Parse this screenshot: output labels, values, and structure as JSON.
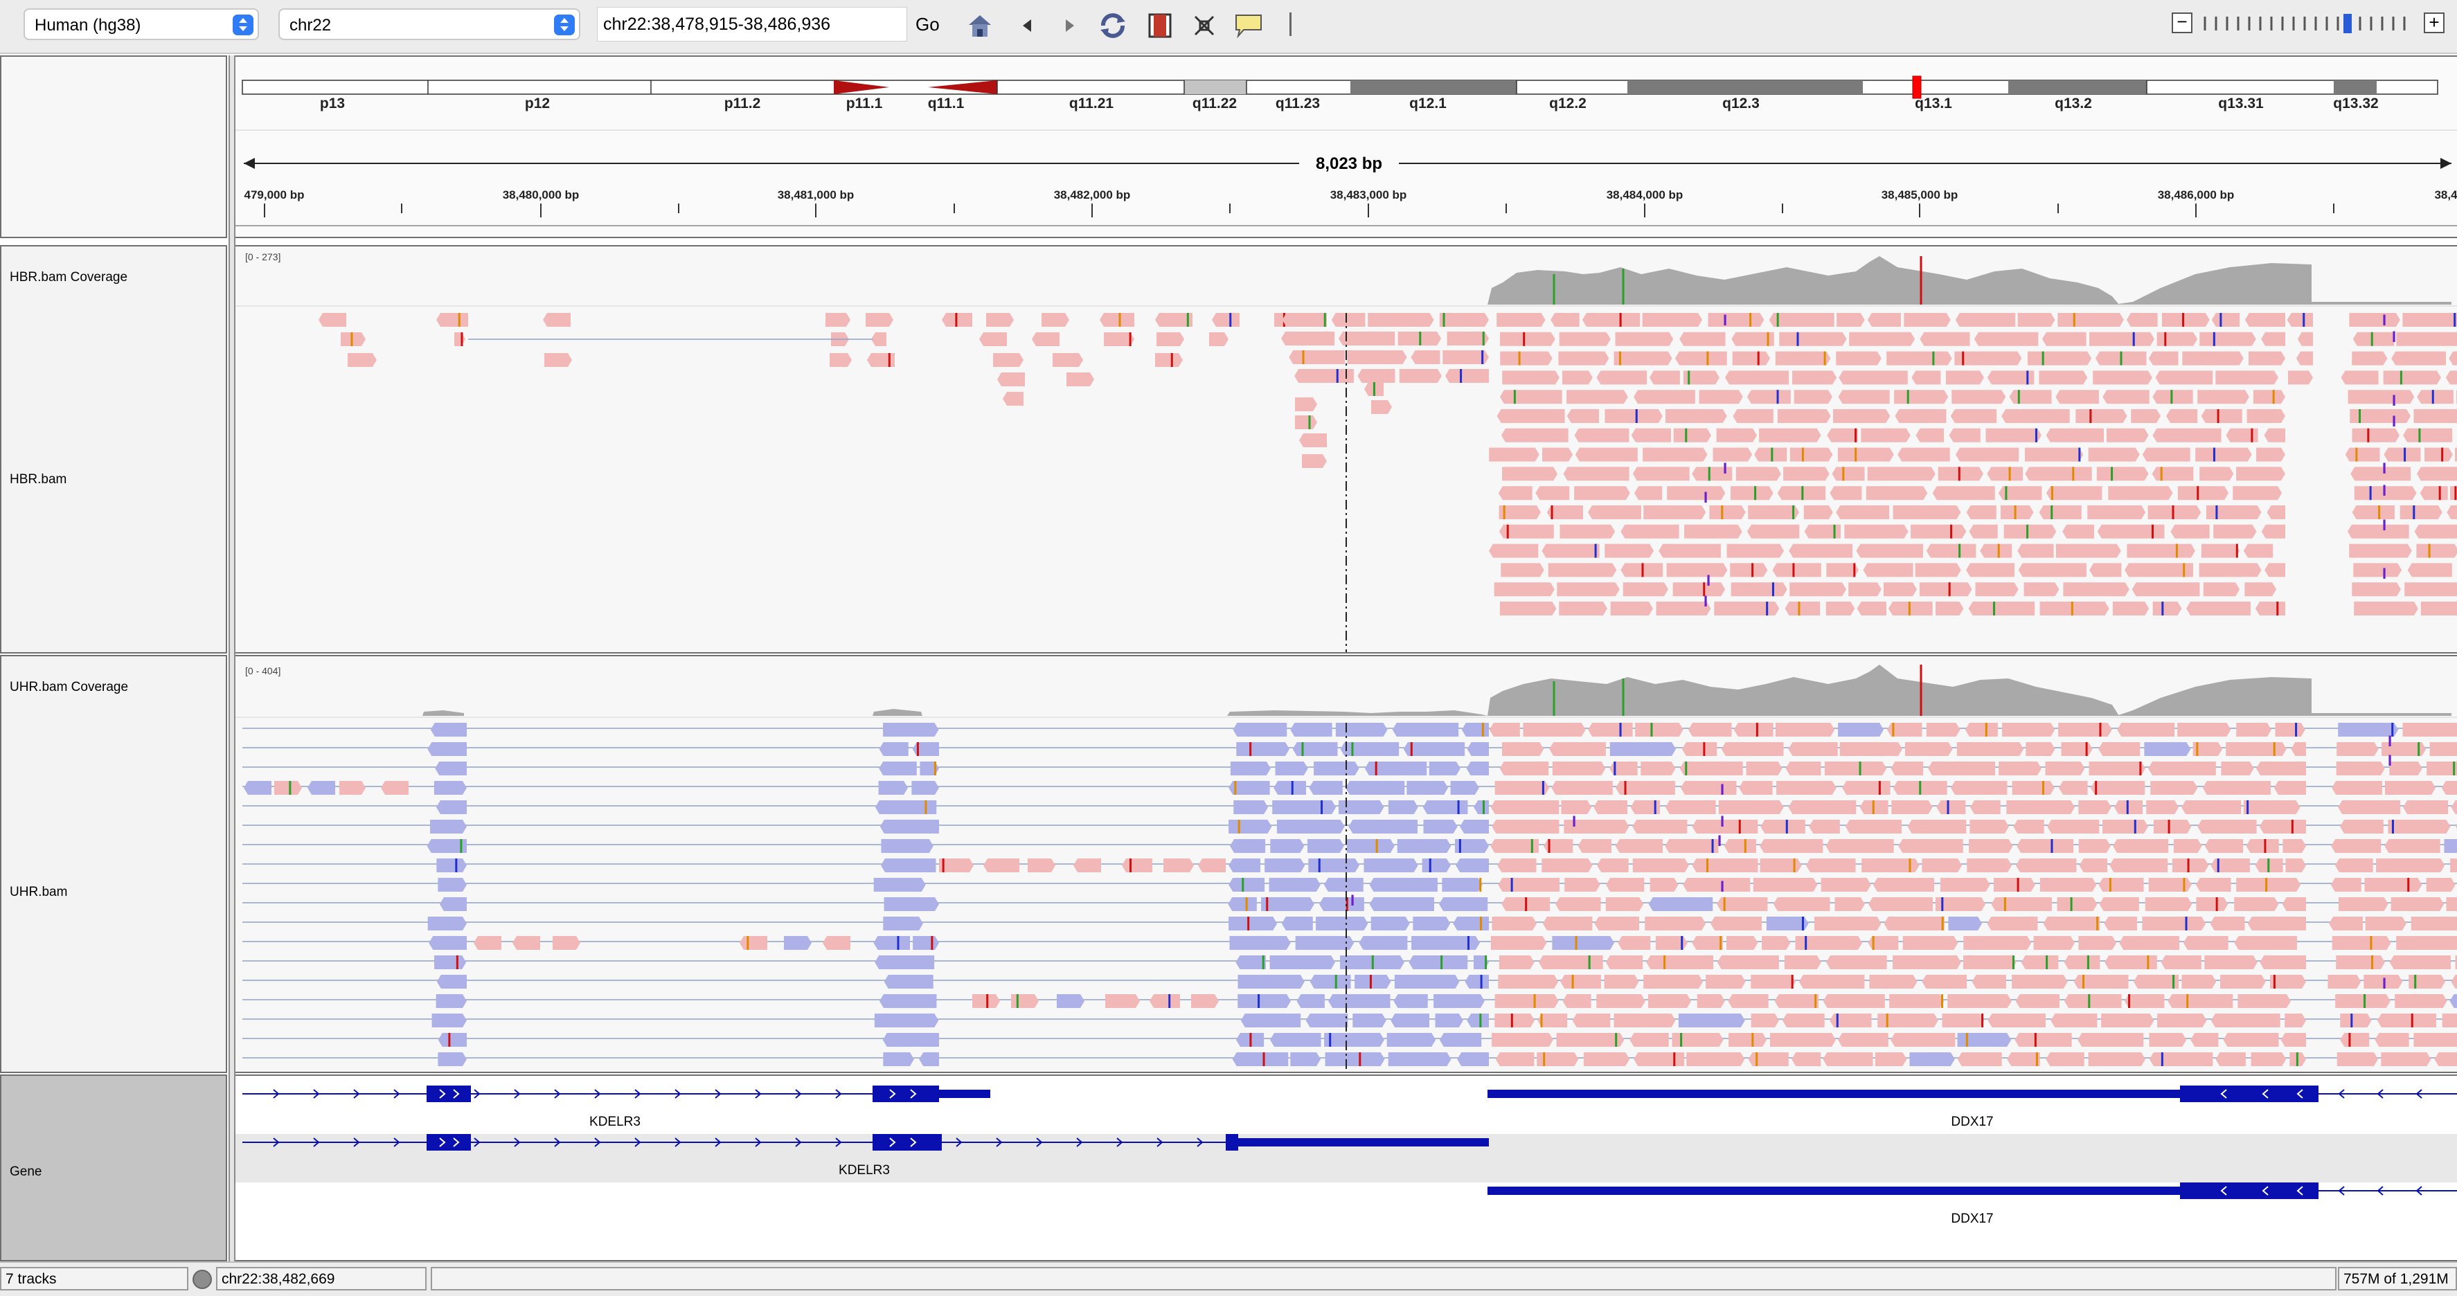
{
  "toolbar": {
    "genome": "Human (hg38)",
    "chromosome": "chr22",
    "locus": "chr22:38,478,915-38,486,936",
    "go_label": "Go",
    "icons": [
      "home-icon",
      "back-icon",
      "forward-icon",
      "refresh-icon",
      "roi-icon",
      "resize-icon",
      "popup-text-icon"
    ],
    "zoom_minus": "−",
    "zoom_plus": "+"
  },
  "ideogram": {
    "bands": [
      "p13",
      "p12",
      "p11.2",
      "p11.1",
      "q11.1",
      "q11.21",
      "q11.22",
      "q11.23",
      "q12.1",
      "q12.2",
      "q12.3",
      "q13.1",
      "q13.2",
      "q13.31",
      "q13.32"
    ]
  },
  "ruler": {
    "span": "8,023 bp",
    "ticks": [
      "479,000 bp",
      "38,480,000 bp",
      "38,481,000 bp",
      "38,482,000 bp",
      "38,483,000 bp",
      "38,484,000 bp",
      "38,485,000 bp",
      "38,486,000 bp",
      "38,4"
    ]
  },
  "tracks": {
    "hbr_cov": {
      "name": "HBR.bam Coverage",
      "range": "[0 - 273]"
    },
    "hbr": {
      "name": "HBR.bam"
    },
    "uhr_cov": {
      "name": "UHR.bam Coverage",
      "range": "[0 - 404]"
    },
    "uhr": {
      "name": "UHR.bam"
    },
    "gene": {
      "name": "Gene",
      "labels": [
        "KDELR3",
        "DDX17",
        "KDELR3",
        "DDX17"
      ]
    }
  },
  "colors": {
    "forward_read": "#f2b8b8",
    "reverse_read": "#aeb0e8",
    "coverage": "#a9a9a9",
    "gene": "#0a10b0",
    "centromere": "#b01010"
  },
  "statusbar": {
    "tracks": "7 tracks",
    "position": "chr22:38,482,669",
    "memory": "757M of 1,291M"
  }
}
